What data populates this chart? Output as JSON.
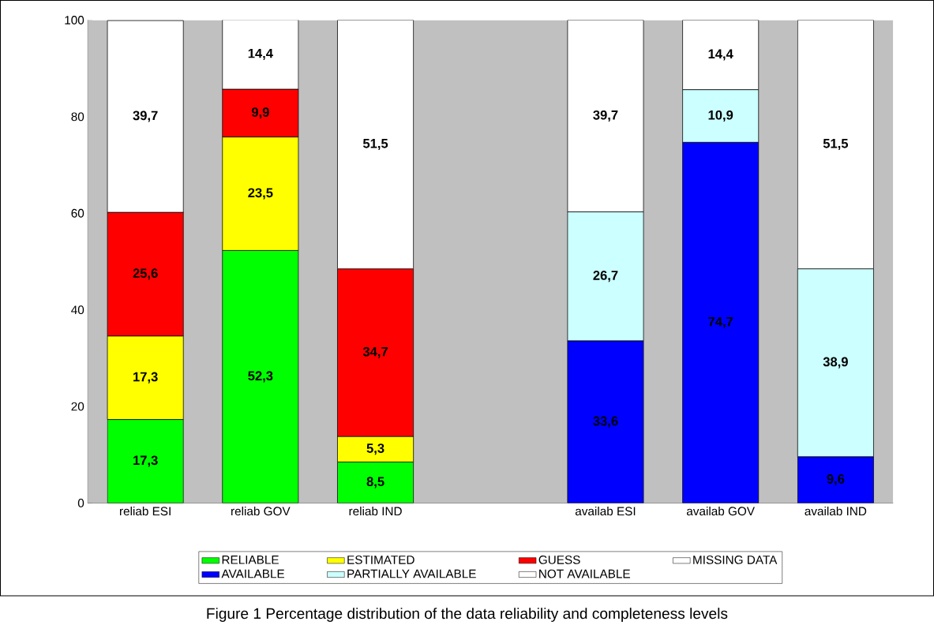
{
  "chart_data": {
    "type": "bar",
    "stacked": true,
    "categories": [
      "reliab ESI",
      "reliab GOV",
      "reliab IND",
      null,
      "availab ESI",
      "availab GOV",
      "availab IND"
    ],
    "series": [
      {
        "name": "RELIABLE",
        "color": "#00ff00",
        "values": [
          17.3,
          52.3,
          8.5,
          null,
          null,
          null,
          null
        ],
        "value_labels": [
          "17,3",
          "52,3",
          "8,5",
          null,
          null,
          null,
          null
        ]
      },
      {
        "name": "ESTIMATED",
        "color": "#ffff00",
        "values": [
          17.3,
          23.5,
          5.3,
          null,
          null,
          null,
          null
        ],
        "value_labels": [
          "17,3",
          "23,5",
          "5,3",
          null,
          null,
          null,
          null
        ]
      },
      {
        "name": "GUESS",
        "color": "#ff0000",
        "values": [
          25.6,
          9.9,
          34.7,
          null,
          null,
          null,
          null
        ],
        "value_labels": [
          "25,6",
          "9,9",
          "34,7",
          null,
          null,
          null,
          null
        ]
      },
      {
        "name": "MISSING DATA",
        "color": "#ffffff",
        "values": [
          39.7,
          14.4,
          51.5,
          null,
          null,
          null,
          null
        ],
        "value_labels": [
          "39,7",
          "14,4",
          "51,5",
          null,
          null,
          null,
          null
        ]
      },
      {
        "name": "AVAILABLE",
        "color": "#0000ff",
        "values": [
          null,
          null,
          null,
          null,
          33.6,
          74.7,
          9.6
        ],
        "value_labels": [
          null,
          null,
          null,
          null,
          "33,6",
          "74,7",
          "9,6"
        ]
      },
      {
        "name": "PARTIALLY AVAILABLE",
        "color": "#ccffff",
        "values": [
          null,
          null,
          null,
          null,
          26.7,
          10.9,
          38.9
        ],
        "value_labels": [
          null,
          null,
          null,
          null,
          "26,7",
          "10,9",
          "38,9"
        ]
      },
      {
        "name": "NOT AVAILABLE",
        "color": "#ffffff",
        "values": [
          null,
          null,
          null,
          null,
          39.7,
          14.4,
          51.5
        ],
        "value_labels": [
          null,
          null,
          null,
          null,
          "39,7",
          "14,4",
          "51,5"
        ]
      }
    ],
    "ylim": [
      0,
      100
    ],
    "yticks": [
      0,
      20,
      40,
      60,
      80,
      100
    ],
    "legend": "bottom",
    "annotations": [
      "Figure 1   Percentage distribution of the data reliability and completeness levels"
    ]
  }
}
